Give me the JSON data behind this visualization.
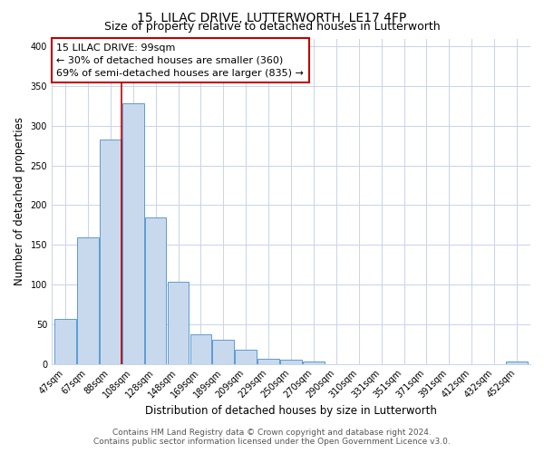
{
  "title": "15, LILAC DRIVE, LUTTERWORTH, LE17 4FP",
  "subtitle": "Size of property relative to detached houses in Lutterworth",
  "xlabel": "Distribution of detached houses by size in Lutterworth",
  "ylabel": "Number of detached properties",
  "bar_labels": [
    "47sqm",
    "67sqm",
    "88sqm",
    "108sqm",
    "128sqm",
    "148sqm",
    "169sqm",
    "189sqm",
    "209sqm",
    "229sqm",
    "250sqm",
    "270sqm",
    "290sqm",
    "310sqm",
    "331sqm",
    "351sqm",
    "371sqm",
    "391sqm",
    "412sqm",
    "432sqm",
    "452sqm"
  ],
  "bar_values": [
    57,
    160,
    283,
    328,
    185,
    103,
    37,
    31,
    18,
    6,
    5,
    3,
    0,
    0,
    0,
    0,
    0,
    0,
    0,
    0,
    3
  ],
  "bar_color": "#c8d9ed",
  "bar_edge_color": "#5b9bd5",
  "red_line_x": 2.5,
  "annotation_title": "15 LILAC DRIVE: 99sqm",
  "annotation_line1": "← 30% of detached houses are smaller (360)",
  "annotation_line2": "69% of semi-detached houses are larger (835) →",
  "annotation_box_color": "#ffffff",
  "annotation_box_edge_color": "#c00000",
  "ylim": [
    0,
    410
  ],
  "yticks": [
    0,
    50,
    100,
    150,
    200,
    250,
    300,
    350,
    400
  ],
  "footer1": "Contains HM Land Registry data © Crown copyright and database right 2024.",
  "footer2": "Contains public sector information licensed under the Open Government Licence v3.0.",
  "bg_color": "#ffffff",
  "grid_color": "#c8d4e8",
  "title_fontsize": 10,
  "subtitle_fontsize": 9,
  "axis_label_fontsize": 8.5,
  "tick_fontsize": 7,
  "annotation_title_fontsize": 8.5,
  "annotation_body_fontsize": 8,
  "footer_fontsize": 6.5
}
